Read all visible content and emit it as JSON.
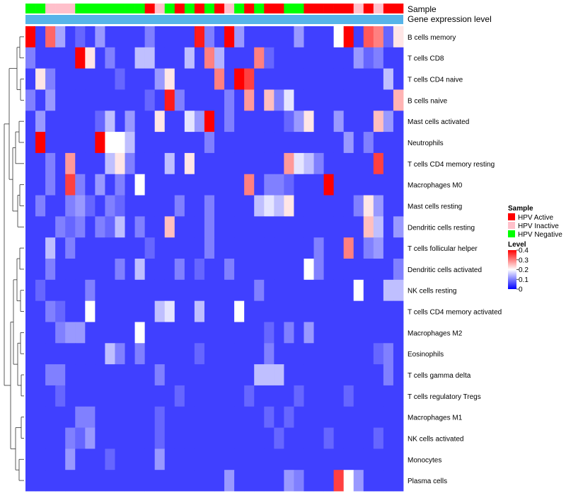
{
  "chart_data": {
    "type": "heatmap",
    "annotation_labels": [
      "Sample",
      "Gene expression level"
    ],
    "rows": [
      "B cells memory",
      "T cells CD8",
      "T cells CD4 naive",
      "B cells naive",
      "Mast cells activated",
      "Neutrophils",
      "T cells CD4 memory resting",
      "Macrophages M0",
      "Mast cells resting",
      "Dendritic cells resting",
      "T cells follicular helper",
      "Dendritic cells activated",
      "NK cells resting",
      "T cells CD4 memory activated",
      "Macrophages M2",
      "Eosinophils",
      "T cells gamma delta",
      "T cells regulatory  Tregs",
      "Macrophages M1",
      "NK cells activated",
      "Monocytes",
      "Plasma cells"
    ],
    "sample_groups": [
      "Negative",
      "Negative",
      "Inactive",
      "Inactive",
      "Inactive",
      "Negative",
      "Negative",
      "Negative",
      "Negative",
      "Negative",
      "Negative",
      "Negative",
      "Active",
      "Inactive",
      "Negative",
      "Active",
      "Negative",
      "Active",
      "Negative",
      "Active",
      "Inactive",
      "Negative",
      "Active",
      "Negative",
      "Active",
      "Active",
      "Negative",
      "Negative",
      "Active",
      "Active",
      "Active",
      "Active",
      "Active",
      "Inactive",
      "Active",
      "Inactive",
      "Active",
      "Active"
    ],
    "values": [
      [
        0.4,
        0.05,
        0.32,
        0.13,
        0.05,
        0.08,
        0.05,
        0.12,
        0.05,
        0.05,
        0.05,
        0.05,
        0.1,
        0.05,
        0.05,
        0.05,
        0.05,
        0.38,
        0.1,
        0.05,
        0.4,
        0.12,
        0.05,
        0.05,
        0.05,
        0.05,
        0.05,
        0.12,
        0.05,
        0.05,
        0.05,
        0.2,
        0.4,
        0.05,
        0.33,
        0.3,
        0.08,
        0.22
      ],
      [
        0.1,
        0.05,
        0.05,
        0.05,
        0.05,
        0.4,
        0.22,
        0.05,
        0.1,
        0.05,
        0.05,
        0.15,
        0.15,
        0.05,
        0.05,
        0.05,
        0.15,
        0.05,
        0.3,
        0.14,
        0.05,
        0.05,
        0.05,
        0.3,
        0.08,
        0.05,
        0.05,
        0.05,
        0.05,
        0.05,
        0.05,
        0.05,
        0.05,
        0.12,
        0.08,
        0.1,
        0.05,
        0.05
      ],
      [
        0.05,
        0.22,
        0.1,
        0.05,
        0.05,
        0.05,
        0.05,
        0.05,
        0.05,
        0.08,
        0.05,
        0.05,
        0.05,
        0.12,
        0.22,
        0.05,
        0.05,
        0.05,
        0.05,
        0.3,
        0.05,
        0.4,
        0.35,
        0.05,
        0.05,
        0.05,
        0.05,
        0.05,
        0.05,
        0.05,
        0.05,
        0.05,
        0.05,
        0.05,
        0.05,
        0.05,
        0.15,
        0.05
      ],
      [
        0.1,
        0.05,
        0.12,
        0.05,
        0.05,
        0.05,
        0.05,
        0.05,
        0.05,
        0.05,
        0.05,
        0.05,
        0.08,
        0.05,
        0.38,
        0.1,
        0.05,
        0.05,
        0.05,
        0.05,
        0.1,
        0.05,
        0.28,
        0.05,
        0.25,
        0.1,
        0.18,
        0.05,
        0.05,
        0.05,
        0.05,
        0.05,
        0.05,
        0.05,
        0.05,
        0.05,
        0.05,
        0.26
      ],
      [
        0.05,
        0.12,
        0.05,
        0.05,
        0.05,
        0.05,
        0.05,
        0.08,
        0.15,
        0.05,
        0.12,
        0.05,
        0.05,
        0.22,
        0.05,
        0.05,
        0.18,
        0.12,
        0.4,
        0.05,
        0.1,
        0.05,
        0.05,
        0.05,
        0.05,
        0.05,
        0.08,
        0.12,
        0.22,
        0.05,
        0.05,
        0.12,
        0.05,
        0.05,
        0.05,
        0.25,
        0.12,
        0.05
      ],
      [
        0.05,
        0.4,
        0.05,
        0.05,
        0.05,
        0.05,
        0.05,
        0.4,
        0.2,
        0.2,
        0.15,
        0.05,
        0.05,
        0.05,
        0.05,
        0.05,
        0.05,
        0.05,
        0.1,
        0.05,
        0.05,
        0.05,
        0.05,
        0.05,
        0.05,
        0.05,
        0.05,
        0.05,
        0.05,
        0.05,
        0.05,
        0.05,
        0.12,
        0.05,
        0.1,
        0.05,
        0.05,
        0.05
      ],
      [
        0.05,
        0.05,
        0.1,
        0.05,
        0.28,
        0.05,
        0.05,
        0.05,
        0.15,
        0.22,
        0.1,
        0.05,
        0.05,
        0.05,
        0.15,
        0.05,
        0.22,
        0.05,
        0.05,
        0.05,
        0.05,
        0.05,
        0.05,
        0.05,
        0.05,
        0.05,
        0.28,
        0.18,
        0.15,
        0.1,
        0.05,
        0.05,
        0.05,
        0.05,
        0.05,
        0.35,
        0.05,
        0.05
      ],
      [
        0.05,
        0.05,
        0.1,
        0.05,
        0.35,
        0.1,
        0.05,
        0.12,
        0.05,
        0.1,
        0.05,
        0.2,
        0.05,
        0.05,
        0.05,
        0.05,
        0.05,
        0.05,
        0.05,
        0.05,
        0.05,
        0.05,
        0.3,
        0.05,
        0.1,
        0.1,
        0.08,
        0.05,
        0.05,
        0.05,
        0.4,
        0.05,
        0.05,
        0.05,
        0.05,
        0.05,
        0.05,
        0.05
      ],
      [
        0.05,
        0.1,
        0.05,
        0.05,
        0.1,
        0.12,
        0.08,
        0.05,
        0.1,
        0.08,
        0.05,
        0.05,
        0.05,
        0.05,
        0.05,
        0.1,
        0.05,
        0.05,
        0.1,
        0.05,
        0.05,
        0.05,
        0.05,
        0.15,
        0.18,
        0.15,
        0.22,
        0.05,
        0.05,
        0.05,
        0.05,
        0.05,
        0.05,
        0.1,
        0.22,
        0.12,
        0.05,
        0.05
      ],
      [
        0.05,
        0.05,
        0.05,
        0.1,
        0.08,
        0.1,
        0.05,
        0.1,
        0.08,
        0.15,
        0.05,
        0.1,
        0.05,
        0.05,
        0.25,
        0.05,
        0.05,
        0.05,
        0.1,
        0.05,
        0.05,
        0.05,
        0.05,
        0.05,
        0.05,
        0.05,
        0.05,
        0.05,
        0.05,
        0.05,
        0.05,
        0.05,
        0.05,
        0.05,
        0.25,
        0.15,
        0.05,
        0.12
      ],
      [
        0.05,
        0.05,
        0.15,
        0.05,
        0.1,
        0.05,
        0.05,
        0.05,
        0.05,
        0.05,
        0.05,
        0.05,
        0.08,
        0.05,
        0.05,
        0.05,
        0.05,
        0.05,
        0.1,
        0.05,
        0.05,
        0.05,
        0.05,
        0.05,
        0.05,
        0.05,
        0.05,
        0.05,
        0.05,
        0.1,
        0.05,
        0.05,
        0.3,
        0.05,
        0.1,
        0.12,
        0.05,
        0.05
      ],
      [
        0.05,
        0.05,
        0.1,
        0.05,
        0.05,
        0.05,
        0.05,
        0.05,
        0.05,
        0.1,
        0.05,
        0.15,
        0.05,
        0.05,
        0.05,
        0.1,
        0.05,
        0.08,
        0.05,
        0.05,
        0.1,
        0.05,
        0.05,
        0.05,
        0.05,
        0.05,
        0.05,
        0.05,
        0.2,
        0.1,
        0.05,
        0.05,
        0.05,
        0.05,
        0.05,
        0.05,
        0.05,
        0.1
      ],
      [
        0.05,
        0.08,
        0.05,
        0.05,
        0.05,
        0.05,
        0.1,
        0.05,
        0.05,
        0.05,
        0.05,
        0.05,
        0.05,
        0.05,
        0.05,
        0.05,
        0.05,
        0.05,
        0.05,
        0.05,
        0.05,
        0.05,
        0.05,
        0.1,
        0.05,
        0.05,
        0.05,
        0.05,
        0.05,
        0.05,
        0.05,
        0.05,
        0.05,
        0.2,
        0.05,
        0.05,
        0.15,
        0.15
      ],
      [
        0.05,
        0.05,
        0.1,
        0.08,
        0.05,
        0.05,
        0.2,
        0.05,
        0.05,
        0.05,
        0.05,
        0.05,
        0.05,
        0.15,
        0.18,
        0.05,
        0.05,
        0.15,
        0.05,
        0.05,
        0.05,
        0.2,
        0.05,
        0.05,
        0.05,
        0.05,
        0.05,
        0.05,
        0.05,
        0.05,
        0.05,
        0.05,
        0.05,
        0.05,
        0.05,
        0.05,
        0.05,
        0.05
      ],
      [
        0.05,
        0.05,
        0.05,
        0.1,
        0.12,
        0.12,
        0.05,
        0.05,
        0.05,
        0.05,
        0.05,
        0.2,
        0.05,
        0.05,
        0.05,
        0.05,
        0.05,
        0.05,
        0.05,
        0.05,
        0.05,
        0.05,
        0.05,
        0.05,
        0.08,
        0.05,
        0.1,
        0.05,
        0.12,
        0.05,
        0.05,
        0.05,
        0.05,
        0.05,
        0.05,
        0.05,
        0.05,
        0.05
      ],
      [
        0.05,
        0.05,
        0.05,
        0.05,
        0.05,
        0.05,
        0.05,
        0.05,
        0.15,
        0.1,
        0.05,
        0.1,
        0.05,
        0.05,
        0.05,
        0.05,
        0.05,
        0.08,
        0.05,
        0.05,
        0.05,
        0.05,
        0.05,
        0.05,
        0.1,
        0.05,
        0.05,
        0.05,
        0.05,
        0.05,
        0.05,
        0.05,
        0.05,
        0.05,
        0.05,
        0.08,
        0.1,
        0.05
      ],
      [
        0.05,
        0.05,
        0.1,
        0.1,
        0.05,
        0.05,
        0.05,
        0.05,
        0.05,
        0.05,
        0.05,
        0.05,
        0.05,
        0.1,
        0.05,
        0.05,
        0.05,
        0.05,
        0.05,
        0.05,
        0.05,
        0.05,
        0.05,
        0.15,
        0.15,
        0.15,
        0.05,
        0.05,
        0.05,
        0.05,
        0.05,
        0.05,
        0.05,
        0.05,
        0.05,
        0.05,
        0.1,
        0.05
      ],
      [
        0.05,
        0.05,
        0.05,
        0.08,
        0.05,
        0.05,
        0.05,
        0.05,
        0.05,
        0.05,
        0.05,
        0.05,
        0.05,
        0.05,
        0.05,
        0.08,
        0.05,
        0.05,
        0.05,
        0.05,
        0.05,
        0.05,
        0.08,
        0.05,
        0.05,
        0.05,
        0.05,
        0.08,
        0.05,
        0.05,
        0.05,
        0.05,
        0.08,
        0.05,
        0.05,
        0.05,
        0.05,
        0.05
      ],
      [
        0.05,
        0.05,
        0.05,
        0.05,
        0.05,
        0.1,
        0.1,
        0.05,
        0.05,
        0.05,
        0.05,
        0.05,
        0.05,
        0.08,
        0.05,
        0.05,
        0.05,
        0.05,
        0.05,
        0.05,
        0.05,
        0.05,
        0.05,
        0.05,
        0.08,
        0.05,
        0.08,
        0.05,
        0.05,
        0.05,
        0.05,
        0.05,
        0.05,
        0.05,
        0.05,
        0.05,
        0.05,
        0.05
      ],
      [
        0.05,
        0.05,
        0.05,
        0.05,
        0.1,
        0.08,
        0.12,
        0.05,
        0.05,
        0.05,
        0.05,
        0.05,
        0.05,
        0.08,
        0.05,
        0.05,
        0.05,
        0.05,
        0.05,
        0.05,
        0.05,
        0.05,
        0.05,
        0.05,
        0.05,
        0.08,
        0.05,
        0.05,
        0.05,
        0.05,
        0.08,
        0.05,
        0.05,
        0.05,
        0.05,
        0.08,
        0.05,
        0.05
      ],
      [
        0.05,
        0.05,
        0.05,
        0.05,
        0.12,
        0.05,
        0.05,
        0.05,
        0.08,
        0.05,
        0.05,
        0.05,
        0.05,
        0.12,
        0.05,
        0.05,
        0.05,
        0.05,
        0.05,
        0.05,
        0.05,
        0.05,
        0.05,
        0.05,
        0.05,
        0.05,
        0.05,
        0.05,
        0.05,
        0.05,
        0.05,
        0.05,
        0.05,
        0.05,
        0.05,
        0.05,
        0.05,
        0.05
      ],
      [
        0.05,
        0.05,
        0.05,
        0.05,
        0.05,
        0.05,
        0.05,
        0.05,
        0.05,
        0.05,
        0.05,
        0.05,
        0.05,
        0.05,
        0.05,
        0.05,
        0.05,
        0.05,
        0.05,
        0.05,
        0.12,
        0.05,
        0.05,
        0.05,
        0.05,
        0.05,
        0.12,
        0.1,
        0.05,
        0.05,
        0.05,
        0.35,
        0.2,
        0.12,
        0.05,
        0.05,
        0.05,
        0.05
      ]
    ],
    "color_scale": {
      "min": 0,
      "max": 0.4,
      "low": "#0000ff",
      "mid": "#ffffff",
      "high": "#ff0000"
    },
    "legend": {
      "sample_title": "Sample",
      "sample_items": [
        {
          "label": "HPV Active",
          "color": "#ff0000"
        },
        {
          "label": "HPV Inactive",
          "color": "#ffc0cb"
        },
        {
          "label": "HPV Negative",
          "color": "#00ff00"
        }
      ],
      "level_title": "Level",
      "level_ticks": [
        "0.4",
        "0.3",
        "0.2",
        "0.1",
        "0"
      ]
    },
    "expression_bar_color": "#56b4e9",
    "group_colors": {
      "Active": "#ff0000",
      "Inactive": "#ffc0cb",
      "Negative": "#00ff00"
    }
  }
}
